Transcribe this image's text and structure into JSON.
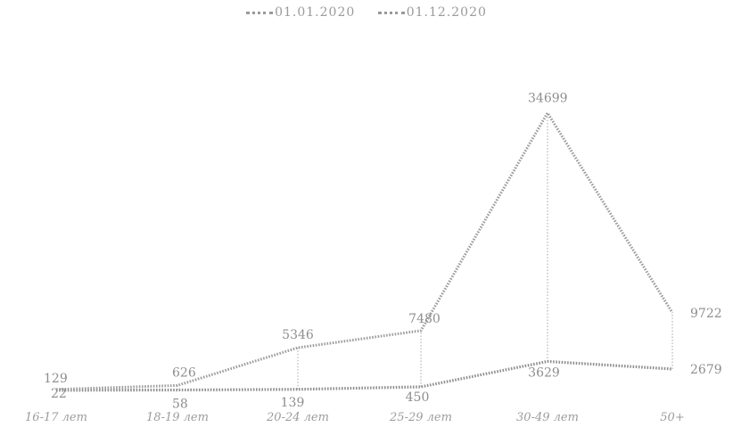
{
  "chart_data": {
    "type": "line",
    "categories": [
      "16-17 лет",
      "18-19 лет",
      "20-24 лет",
      "25-29 лет",
      "30-49 лет",
      "50+"
    ],
    "series": [
      {
        "name": "01.01.2020",
        "values": [
          22,
          58,
          139,
          450,
          3629,
          2679
        ]
      },
      {
        "name": "01.12.2020",
        "values": [
          129,
          626,
          5346,
          7480,
          34699,
          9722
        ]
      }
    ],
    "ylim": [
      0,
      36000
    ],
    "grid": false,
    "legend_position": "top",
    "drop_lines": true
  }
}
